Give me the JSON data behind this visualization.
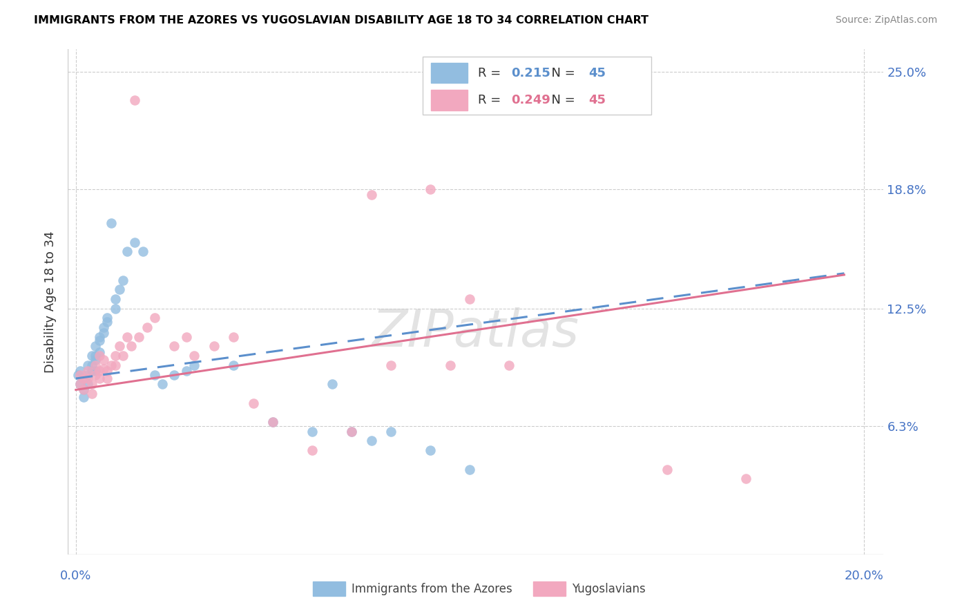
{
  "title": "IMMIGRANTS FROM THE AZORES VS YUGOSLAVIAN DISABILITY AGE 18 TO 34 CORRELATION CHART",
  "source": "Source: ZipAtlas.com",
  "ylabel": "Disability Age 18 to 34",
  "xlim": [
    -0.002,
    0.205
  ],
  "ylim": [
    -0.005,
    0.262
  ],
  "ytick_values": [
    0.063,
    0.125,
    0.188,
    0.25
  ],
  "ytick_labels": [
    "6.3%",
    "12.5%",
    "18.8%",
    "25.0%"
  ],
  "xtick_values": [
    0.0,
    0.2
  ],
  "xtick_labels": [
    "0.0%",
    "20.0%"
  ],
  "legend_label1": "Immigrants from the Azores",
  "legend_label2": "Yugoslavians",
  "R1": "0.215",
  "N1": "45",
  "R2": "0.249",
  "N2": "45",
  "color_blue": "#92BDE0",
  "color_pink": "#F2A8BF",
  "color_blue_line": "#5B8FCC",
  "color_pink_line": "#E07090",
  "watermark": "ZIPatlas",
  "azores_x": [
    0.0005,
    0.001,
    0.001,
    0.002,
    0.002,
    0.002,
    0.003,
    0.003,
    0.003,
    0.004,
    0.004,
    0.004,
    0.005,
    0.005,
    0.005,
    0.005,
    0.006,
    0.006,
    0.006,
    0.007,
    0.007,
    0.008,
    0.008,
    0.009,
    0.01,
    0.01,
    0.011,
    0.012,
    0.013,
    0.015,
    0.017,
    0.02,
    0.022,
    0.025,
    0.028,
    0.03,
    0.04,
    0.05,
    0.06,
    0.065,
    0.07,
    0.075,
    0.08,
    0.09,
    0.1
  ],
  "azores_y": [
    0.09,
    0.085,
    0.092,
    0.088,
    0.082,
    0.078,
    0.095,
    0.09,
    0.085,
    0.1,
    0.095,
    0.092,
    0.105,
    0.1,
    0.098,
    0.092,
    0.11,
    0.108,
    0.102,
    0.115,
    0.112,
    0.12,
    0.118,
    0.17,
    0.125,
    0.13,
    0.135,
    0.14,
    0.155,
    0.16,
    0.155,
    0.09,
    0.085,
    0.09,
    0.092,
    0.095,
    0.095,
    0.065,
    0.06,
    0.085,
    0.06,
    0.055,
    0.06,
    0.05,
    0.04
  ],
  "yugoslav_x": [
    0.001,
    0.001,
    0.002,
    0.002,
    0.003,
    0.003,
    0.004,
    0.004,
    0.005,
    0.005,
    0.006,
    0.006,
    0.006,
    0.007,
    0.007,
    0.008,
    0.008,
    0.009,
    0.01,
    0.01,
    0.011,
    0.012,
    0.013,
    0.014,
    0.015,
    0.016,
    0.018,
    0.02,
    0.025,
    0.028,
    0.03,
    0.035,
    0.04,
    0.045,
    0.05,
    0.06,
    0.07,
    0.075,
    0.08,
    0.09,
    0.095,
    0.1,
    0.11,
    0.15,
    0.17
  ],
  "yugoslav_y": [
    0.09,
    0.085,
    0.088,
    0.082,
    0.092,
    0.088,
    0.085,
    0.08,
    0.095,
    0.09,
    0.1,
    0.092,
    0.088,
    0.098,
    0.093,
    0.092,
    0.088,
    0.095,
    0.1,
    0.095,
    0.105,
    0.1,
    0.11,
    0.105,
    0.235,
    0.11,
    0.115,
    0.12,
    0.105,
    0.11,
    0.1,
    0.105,
    0.11,
    0.075,
    0.065,
    0.05,
    0.06,
    0.185,
    0.095,
    0.188,
    0.095,
    0.13,
    0.095,
    0.04,
    0.035
  ]
}
